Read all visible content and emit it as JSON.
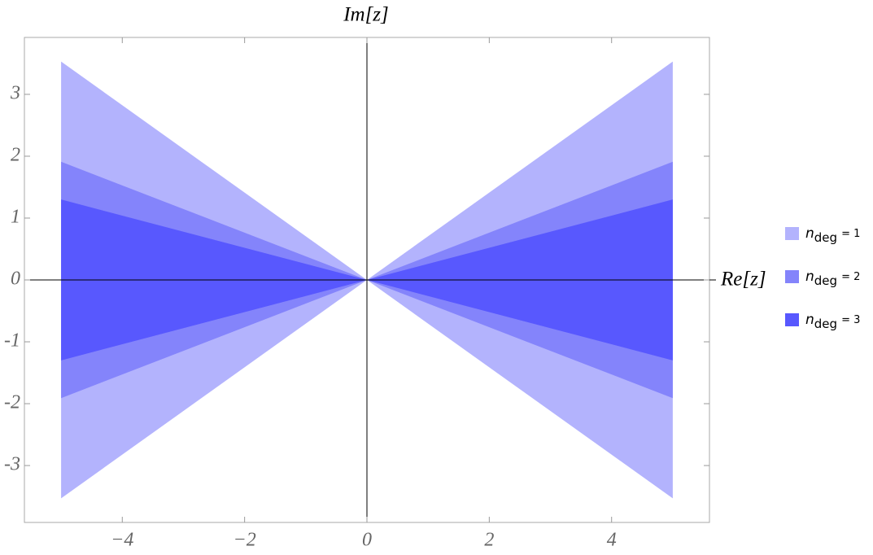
{
  "chart_data": {
    "type": "region",
    "x_label": "Re[z]",
    "y_label": "Im[z]",
    "x": [
      -5,
      0,
      5
    ],
    "series": [
      {
        "name": "= 1",
        "color": "#b3b3fd",
        "values": [
          3.53,
          0,
          3.53
        ],
        "lower": [
          -3.53,
          0,
          -3.53
        ]
      },
      {
        "name": "= 2",
        "color": "#8484fb",
        "values": [
          1.91,
          0,
          1.91
        ],
        "lower": [
          -1.91,
          0,
          -1.91
        ]
      },
      {
        "name": "= 3",
        "color": "#5858fe",
        "values": [
          1.3,
          0,
          1.3
        ],
        "lower": [
          -1.3,
          0,
          -1.3
        ]
      }
    ],
    "legend_symbol": "n",
    "legend_subscript": "deg",
    "xlim": [
      -5.6,
      5.6
    ],
    "ylim": [
      -3.92,
      3.92
    ],
    "xticks": [
      {
        "value": -4,
        "label": "−4"
      },
      {
        "value": -2,
        "label": "−2"
      },
      0,
      2,
      4
    ],
    "yticks": [
      -3,
      -2,
      -1,
      0,
      1,
      2,
      3
    ]
  }
}
